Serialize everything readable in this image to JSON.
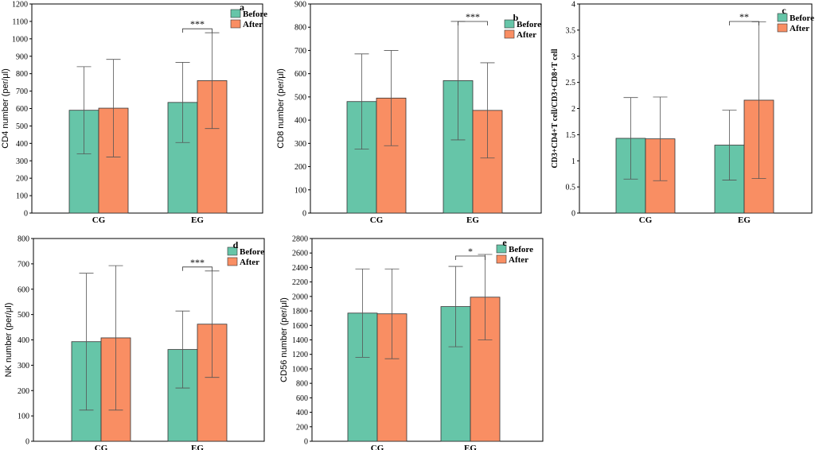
{
  "figure": {
    "colors": {
      "before": "#66c5a8",
      "after": "#f98e63",
      "axis": "#000000",
      "error": "#555555"
    },
    "legend": [
      "Before",
      "After"
    ]
  },
  "chart_data": [
    {
      "type": "bar",
      "panel": "a",
      "ylabel": "CD4 number (per/μl)",
      "categories": [
        "CG",
        "EG"
      ],
      "ylim": [
        0,
        1200
      ],
      "ystep": 100,
      "series": [
        {
          "name": "Before",
          "values": [
            590,
            635
          ],
          "errors": [
            250,
            230
          ]
        },
        {
          "name": "After",
          "values": [
            602,
            760
          ],
          "errors": [
            280,
            275
          ]
        }
      ],
      "significance": {
        "category": "EG",
        "label": "***"
      }
    },
    {
      "type": "bar",
      "panel": "b",
      "ylabel": "CD8 number (per/μl)",
      "categories": [
        "CG",
        "EG"
      ],
      "ylim": [
        0,
        900
      ],
      "ystep": 100,
      "series": [
        {
          "name": "Before",
          "values": [
            480,
            570
          ],
          "errors": [
            205,
            255
          ]
        },
        {
          "name": "After",
          "values": [
            495,
            442
          ],
          "errors": [
            205,
            205
          ]
        }
      ],
      "significance": {
        "category": "EG",
        "label": "***"
      }
    },
    {
      "type": "bar",
      "panel": "c",
      "ylabel": "CD3+CD4+T cell/CD3+CD8+T cell",
      "categories": [
        "CG",
        "EG"
      ],
      "ylim": [
        0,
        4
      ],
      "ystep": 0.5,
      "series": [
        {
          "name": "Before",
          "values": [
            1.43,
            1.3
          ],
          "errors": [
            0.78,
            0.67
          ]
        },
        {
          "name": "After",
          "values": [
            1.42,
            2.16
          ],
          "errors": [
            0.8,
            1.5
          ]
        }
      ],
      "significance": {
        "category": "EG",
        "label": "**"
      }
    },
    {
      "type": "bar",
      "panel": "d",
      "ylabel": "NK number (per/μl)",
      "categories": [
        "CG",
        "EG"
      ],
      "ylim": [
        0,
        800
      ],
      "ystep": 100,
      "series": [
        {
          "name": "Before",
          "values": [
            393,
            362
          ],
          "errors": [
            270,
            152
          ]
        },
        {
          "name": "After",
          "values": [
            408,
            462
          ],
          "errors": [
            285,
            210
          ]
        }
      ],
      "significance": {
        "category": "EG",
        "label": "***"
      }
    },
    {
      "type": "bar",
      "panel": "e",
      "ylabel": "CD56 number (per/μl)",
      "categories": [
        "CG",
        "EG"
      ],
      "ylim": [
        0,
        2800
      ],
      "ystep": 200,
      "series": [
        {
          "name": "Before",
          "values": [
            1770,
            1860
          ],
          "errors": [
            610,
            555
          ]
        },
        {
          "name": "After",
          "values": [
            1760,
            1990
          ],
          "errors": [
            620,
            590
          ]
        }
      ],
      "significance": {
        "category": "EG",
        "label": "*"
      }
    }
  ]
}
